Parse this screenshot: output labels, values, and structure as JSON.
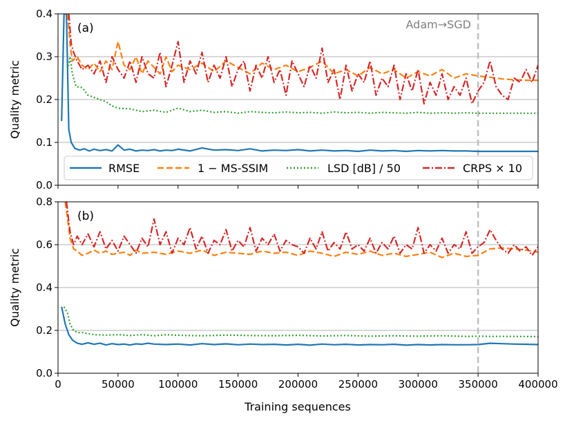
{
  "colors": {
    "rmse": "#1f77b4",
    "msssim": "#ff7f0e",
    "lsd": "#2ca02c",
    "crps": "#d62728",
    "grid": "#b0b0b0",
    "switch_line": "#bfbfbf"
  },
  "chart_data": [
    {
      "type": "line",
      "panel_label": "(a)",
      "ylabel": "Quality metric",
      "xlabel": "",
      "xlim": [
        0,
        400000
      ],
      "ylim": [
        0,
        0.4
      ],
      "yticks": [
        "0.0",
        "0.1",
        "0.2",
        "0.3",
        "0.4"
      ],
      "annotation": {
        "text": "Adam→SGD",
        "x": 350000
      },
      "legend": {
        "placement": "lower-center",
        "entries": [
          "RMSE",
          "1 − MS-SSIM",
          "LSD [dB] / 50",
          "CRPS × 10"
        ]
      },
      "series": [
        {
          "name": "RMSE",
          "key": "rmse",
          "style": "solid",
          "x": [
            3000,
            5000,
            7000,
            9000,
            11000,
            14000,
            18000,
            22000,
            26000,
            30000,
            35000,
            40000,
            45000,
            50000,
            55000,
            60000,
            65000,
            70000,
            75000,
            80000,
            85000,
            90000,
            95000,
            100000,
            110000,
            120000,
            130000,
            140000,
            150000,
            160000,
            170000,
            180000,
            190000,
            200000,
            210000,
            220000,
            230000,
            240000,
            250000,
            260000,
            270000,
            280000,
            290000,
            300000,
            310000,
            320000,
            330000,
            340000,
            350000,
            360000,
            370000,
            380000,
            390000,
            400000
          ],
          "values": [
            0.15,
            0.4,
            0.4,
            0.13,
            0.1,
            0.086,
            0.082,
            0.085,
            0.08,
            0.084,
            0.081,
            0.083,
            0.08,
            0.094,
            0.082,
            0.084,
            0.08,
            0.082,
            0.081,
            0.083,
            0.08,
            0.082,
            0.081,
            0.084,
            0.08,
            0.087,
            0.082,
            0.083,
            0.081,
            0.085,
            0.08,
            0.082,
            0.081,
            0.083,
            0.08,
            0.082,
            0.08,
            0.081,
            0.079,
            0.082,
            0.08,
            0.081,
            0.079,
            0.081,
            0.08,
            0.081,
            0.08,
            0.08,
            0.079,
            0.079,
            0.079,
            0.079,
            0.079,
            0.079
          ]
        },
        {
          "name": "1 − MS-SSIM",
          "key": "msssim",
          "style": "dashed",
          "x": [
            8000,
            10000,
            12000,
            16000,
            20000,
            25000,
            30000,
            35000,
            40000,
            45000,
            50000,
            55000,
            60000,
            65000,
            70000,
            75000,
            80000,
            85000,
            90000,
            95000,
            100000,
            110000,
            120000,
            130000,
            140000,
            150000,
            160000,
            170000,
            180000,
            190000,
            200000,
            210000,
            220000,
            230000,
            240000,
            250000,
            260000,
            270000,
            280000,
            290000,
            300000,
            310000,
            320000,
            330000,
            340000,
            350000,
            360000,
            370000,
            380000,
            390000,
            400000
          ],
          "values": [
            0.4,
            0.33,
            0.29,
            0.3,
            0.28,
            0.27,
            0.285,
            0.265,
            0.29,
            0.27,
            0.335,
            0.28,
            0.27,
            0.3,
            0.26,
            0.29,
            0.275,
            0.26,
            0.3,
            0.265,
            0.28,
            0.27,
            0.285,
            0.265,
            0.29,
            0.275,
            0.26,
            0.285,
            0.27,
            0.28,
            0.265,
            0.275,
            0.29,
            0.26,
            0.27,
            0.255,
            0.275,
            0.26,
            0.27,
            0.25,
            0.265,
            0.255,
            0.27,
            0.25,
            0.26,
            0.255,
            0.252,
            0.248,
            0.246,
            0.245,
            0.245
          ]
        },
        {
          "name": "LSD [dB] / 50",
          "key": "lsd",
          "style": "dotted",
          "x": [
            8000,
            10000,
            12000,
            15000,
            20000,
            25000,
            30000,
            35000,
            40000,
            45000,
            50000,
            60000,
            70000,
            80000,
            90000,
            100000,
            110000,
            120000,
            130000,
            140000,
            150000,
            160000,
            170000,
            180000,
            190000,
            200000,
            210000,
            220000,
            230000,
            240000,
            250000,
            260000,
            270000,
            280000,
            290000,
            300000,
            310000,
            320000,
            330000,
            340000,
            350000,
            360000,
            370000,
            380000,
            390000,
            400000
          ],
          "values": [
            0.27,
            0.3,
            0.26,
            0.23,
            0.228,
            0.21,
            0.205,
            0.2,
            0.195,
            0.185,
            0.18,
            0.178,
            0.172,
            0.175,
            0.17,
            0.18,
            0.172,
            0.175,
            0.17,
            0.172,
            0.168,
            0.172,
            0.17,
            0.169,
            0.171,
            0.169,
            0.17,
            0.168,
            0.171,
            0.169,
            0.17,
            0.168,
            0.17,
            0.169,
            0.168,
            0.17,
            0.168,
            0.169,
            0.168,
            0.169,
            0.168,
            0.168,
            0.168,
            0.168,
            0.168,
            0.168
          ]
        },
        {
          "name": "CRPS × 10",
          "key": "crps",
          "style": "dashdot",
          "x": [
            9000,
            11000,
            13000,
            16000,
            20000,
            25000,
            30000,
            35000,
            40000,
            45000,
            50000,
            55000,
            60000,
            65000,
            70000,
            75000,
            80000,
            85000,
            90000,
            95000,
            100000,
            105000,
            110000,
            115000,
            120000,
            125000,
            130000,
            135000,
            140000,
            145000,
            150000,
            155000,
            160000,
            165000,
            170000,
            175000,
            180000,
            185000,
            190000,
            195000,
            200000,
            205000,
            210000,
            215000,
            220000,
            225000,
            230000,
            235000,
            240000,
            245000,
            250000,
            255000,
            260000,
            265000,
            270000,
            275000,
            280000,
            285000,
            290000,
            295000,
            300000,
            305000,
            310000,
            315000,
            320000,
            325000,
            330000,
            335000,
            340000,
            345000,
            350000,
            355000,
            360000,
            365000,
            370000,
            375000,
            380000,
            385000,
            390000,
            395000,
            400000
          ],
          "values": [
            0.4,
            0.33,
            0.31,
            0.29,
            0.27,
            0.28,
            0.26,
            0.29,
            0.24,
            0.3,
            0.27,
            0.25,
            0.29,
            0.24,
            0.3,
            0.26,
            0.25,
            0.31,
            0.23,
            0.28,
            0.335,
            0.24,
            0.29,
            0.26,
            0.31,
            0.24,
            0.28,
            0.25,
            0.3,
            0.23,
            0.27,
            0.29,
            0.22,
            0.28,
            0.25,
            0.3,
            0.24,
            0.27,
            0.21,
            0.29,
            0.26,
            0.23,
            0.28,
            0.25,
            0.32,
            0.24,
            0.27,
            0.2,
            0.28,
            0.22,
            0.26,
            0.24,
            0.29,
            0.21,
            0.25,
            0.23,
            0.28,
            0.2,
            0.26,
            0.22,
            0.27,
            0.19,
            0.24,
            0.21,
            0.26,
            0.2,
            0.23,
            0.21,
            0.25,
            0.19,
            0.22,
            0.24,
            0.29,
            0.23,
            0.21,
            0.2,
            0.25,
            0.24,
            0.27,
            0.24,
            0.28
          ]
        }
      ]
    },
    {
      "type": "line",
      "panel_label": "(b)",
      "ylabel": "Quality metric",
      "xlabel": "Training sequences",
      "xlim": [
        0,
        400000
      ],
      "ylim": [
        0,
        0.8
      ],
      "yticks": [
        "0.0",
        "0.2",
        "0.4",
        "0.6",
        "0.8"
      ],
      "xticks": [
        "0",
        "50000",
        "100000",
        "150000",
        "200000",
        "250000",
        "300000",
        "350000",
        "400000"
      ],
      "series": [
        {
          "name": "RMSE",
          "key": "rmse",
          "style": "solid",
          "x": [
            3000,
            6000,
            9000,
            12000,
            16000,
            20000,
            25000,
            30000,
            35000,
            40000,
            45000,
            50000,
            55000,
            60000,
            65000,
            70000,
            75000,
            80000,
            90000,
            100000,
            110000,
            120000,
            130000,
            140000,
            150000,
            160000,
            170000,
            180000,
            190000,
            200000,
            210000,
            220000,
            230000,
            240000,
            250000,
            260000,
            270000,
            280000,
            290000,
            300000,
            310000,
            320000,
            330000,
            340000,
            350000,
            360000,
            370000,
            380000,
            390000,
            400000
          ],
          "values": [
            0.31,
            0.23,
            0.18,
            0.155,
            0.14,
            0.135,
            0.142,
            0.135,
            0.14,
            0.132,
            0.138,
            0.134,
            0.136,
            0.132,
            0.137,
            0.135,
            0.14,
            0.136,
            0.134,
            0.136,
            0.132,
            0.138,
            0.134,
            0.137,
            0.133,
            0.136,
            0.134,
            0.135,
            0.132,
            0.135,
            0.131,
            0.136,
            0.133,
            0.135,
            0.132,
            0.134,
            0.133,
            0.135,
            0.131,
            0.134,
            0.132,
            0.134,
            0.133,
            0.133,
            0.134,
            0.14,
            0.138,
            0.136,
            0.135,
            0.134
          ]
        },
        {
          "name": "1 − MS-SSIM",
          "key": "msssim",
          "style": "dashed",
          "x": [
            6000,
            8000,
            10000,
            13000,
            16000,
            20000,
            25000,
            30000,
            35000,
            40000,
            45000,
            50000,
            55000,
            60000,
            65000,
            70000,
            80000,
            90000,
            100000,
            110000,
            120000,
            130000,
            140000,
            150000,
            160000,
            170000,
            180000,
            190000,
            200000,
            210000,
            220000,
            230000,
            240000,
            250000,
            260000,
            270000,
            280000,
            290000,
            300000,
            310000,
            320000,
            330000,
            340000,
            350000,
            360000,
            370000,
            380000,
            390000,
            400000
          ],
          "values": [
            0.8,
            0.72,
            0.63,
            0.58,
            0.57,
            0.55,
            0.56,
            0.575,
            0.56,
            0.57,
            0.555,
            0.56,
            0.565,
            0.55,
            0.575,
            0.56,
            0.565,
            0.555,
            0.57,
            0.56,
            0.575,
            0.55,
            0.565,
            0.56,
            0.555,
            0.57,
            0.56,
            0.565,
            0.55,
            0.57,
            0.56,
            0.545,
            0.565,
            0.555,
            0.57,
            0.55,
            0.56,
            0.545,
            0.555,
            0.565,
            0.54,
            0.56,
            0.545,
            0.55,
            0.58,
            0.585,
            0.58,
            0.575,
            0.565
          ]
        },
        {
          "name": "LSD [dB] / 50",
          "key": "lsd",
          "style": "dotted",
          "x": [
            5000,
            8000,
            10000,
            13000,
            16000,
            20000,
            25000,
            30000,
            40000,
            50000,
            60000,
            70000,
            80000,
            90000,
            100000,
            120000,
            140000,
            160000,
            180000,
            200000,
            220000,
            240000,
            260000,
            280000,
            300000,
            320000,
            340000,
            350000,
            360000,
            380000,
            400000
          ],
          "values": [
            0.31,
            0.28,
            0.23,
            0.2,
            0.19,
            0.19,
            0.185,
            0.18,
            0.178,
            0.18,
            0.176,
            0.18,
            0.175,
            0.18,
            0.177,
            0.175,
            0.178,
            0.176,
            0.175,
            0.177,
            0.174,
            0.176,
            0.173,
            0.175,
            0.173,
            0.175,
            0.172,
            0.173,
            0.172,
            0.172,
            0.171
          ]
        },
        {
          "name": "CRPS × 10",
          "key": "crps",
          "style": "dashdot",
          "x": [
            7000,
            10000,
            13000,
            16000,
            20000,
            25000,
            30000,
            35000,
            40000,
            45000,
            50000,
            55000,
            60000,
            65000,
            70000,
            75000,
            80000,
            85000,
            90000,
            95000,
            100000,
            105000,
            110000,
            115000,
            120000,
            125000,
            130000,
            135000,
            140000,
            145000,
            150000,
            155000,
            160000,
            165000,
            170000,
            175000,
            180000,
            185000,
            190000,
            195000,
            200000,
            205000,
            210000,
            215000,
            220000,
            225000,
            230000,
            235000,
            240000,
            245000,
            250000,
            255000,
            260000,
            265000,
            270000,
            275000,
            280000,
            285000,
            290000,
            295000,
            300000,
            305000,
            310000,
            315000,
            320000,
            325000,
            330000,
            335000,
            340000,
            345000,
            350000,
            355000,
            360000,
            365000,
            370000,
            375000,
            380000,
            385000,
            390000,
            395000,
            400000
          ],
          "values": [
            0.8,
            0.66,
            0.6,
            0.64,
            0.6,
            0.65,
            0.59,
            0.66,
            0.58,
            0.62,
            0.57,
            0.64,
            0.6,
            0.56,
            0.63,
            0.59,
            0.72,
            0.6,
            0.66,
            0.56,
            0.63,
            0.6,
            0.68,
            0.58,
            0.64,
            0.56,
            0.62,
            0.6,
            0.67,
            0.57,
            0.62,
            0.59,
            0.68,
            0.57,
            0.63,
            0.6,
            0.65,
            0.57,
            0.62,
            0.6,
            0.59,
            0.56,
            0.63,
            0.58,
            0.66,
            0.57,
            0.61,
            0.58,
            0.66,
            0.58,
            0.6,
            0.57,
            0.63,
            0.56,
            0.61,
            0.58,
            0.64,
            0.56,
            0.6,
            0.58,
            0.68,
            0.56,
            0.6,
            0.57,
            0.63,
            0.56,
            0.6,
            0.58,
            0.66,
            0.56,
            0.59,
            0.61,
            0.67,
            0.62,
            0.58,
            0.56,
            0.6,
            0.57,
            0.59,
            0.55,
            0.59
          ]
        }
      ]
    }
  ]
}
